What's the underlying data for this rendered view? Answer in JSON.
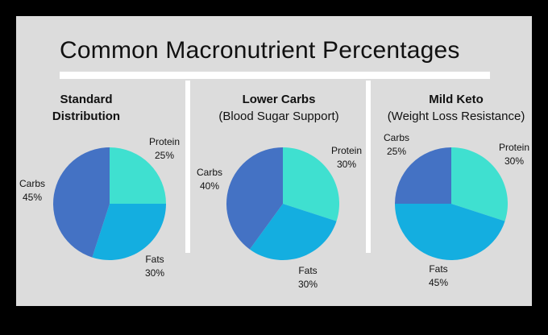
{
  "title": "Common Macronutrient Percentages",
  "colors": {
    "background": "#dcdcdc",
    "carbs": "#4472c4",
    "protein": "#3fe0d0",
    "fats": "#14aee0"
  },
  "chart_data": [
    {
      "type": "pie",
      "title_line1": "Standard",
      "title_line2": "Distribution",
      "slices": [
        {
          "label": "Protein",
          "value": 25,
          "value_text": "25%"
        },
        {
          "label": "Fats",
          "value": 30,
          "value_text": "30%"
        },
        {
          "label": "Carbs",
          "value": 45,
          "value_text": "45%"
        }
      ]
    },
    {
      "type": "pie",
      "title_line1": "Lower Carbs",
      "title_line2": "(Blood Sugar Support)",
      "slices": [
        {
          "label": "Protein",
          "value": 30,
          "value_text": "30%"
        },
        {
          "label": "Fats",
          "value": 30,
          "value_text": "30%"
        },
        {
          "label": "Carbs",
          "value": 40,
          "value_text": "40%"
        }
      ]
    },
    {
      "type": "pie",
      "title_line1": "Mild Keto",
      "title_line2": "(Weight Loss Resistance)",
      "slices": [
        {
          "label": "Protein",
          "value": 30,
          "value_text": "30%"
        },
        {
          "label": "Fats",
          "value": 45,
          "value_text": "45%"
        },
        {
          "label": "Carbs",
          "value": 25,
          "value_text": "25%"
        }
      ]
    }
  ]
}
